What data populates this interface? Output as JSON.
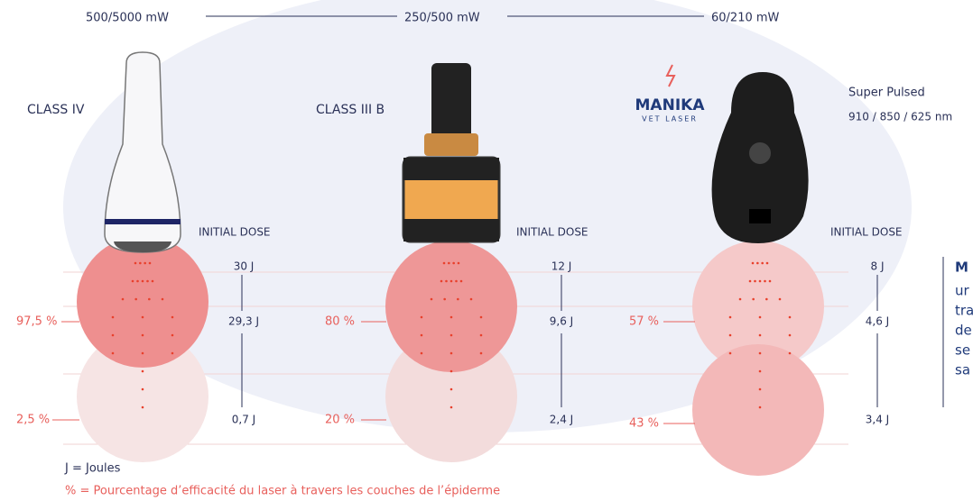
{
  "power_labels": [
    "500/5000 mW",
    "250/500 mW",
    "60/210 mW"
  ],
  "columns": [
    {
      "class_label": "CLASS IV",
      "dose_header": "INITIAL DOSE",
      "doses": [
        "30 J",
        "29,3 J",
        "0,7 J"
      ],
      "percentages": [
        "97,5 %",
        "2,5 %"
      ]
    },
    {
      "class_label": "CLASS III B",
      "dose_header": "INITIAL DOSE",
      "doses": [
        "12 J",
        "9,6 J",
        "2,4 J"
      ],
      "percentages": [
        "80 %",
        "20 %"
      ]
    },
    {
      "dose_header": "INITIAL DOSE",
      "doses": [
        "8 J",
        "4,6 J",
        "3,4 J"
      ],
      "percentages": [
        "57 %",
        "43 %"
      ]
    }
  ],
  "brand": {
    "name": "MANIKA",
    "tagline": "VET LASER"
  },
  "super_pulsed": {
    "title": "Super Pulsed",
    "wavelengths": "910 / 850 / 625 nm"
  },
  "side_note": {
    "lines": [
      "M",
      "ur",
      "tra",
      "de",
      "se",
      "sa"
    ]
  },
  "legend": [
    "J = Joules",
    "% = Pourcentage d’efficacité du laser à travers les couches de l’épiderme"
  ]
}
